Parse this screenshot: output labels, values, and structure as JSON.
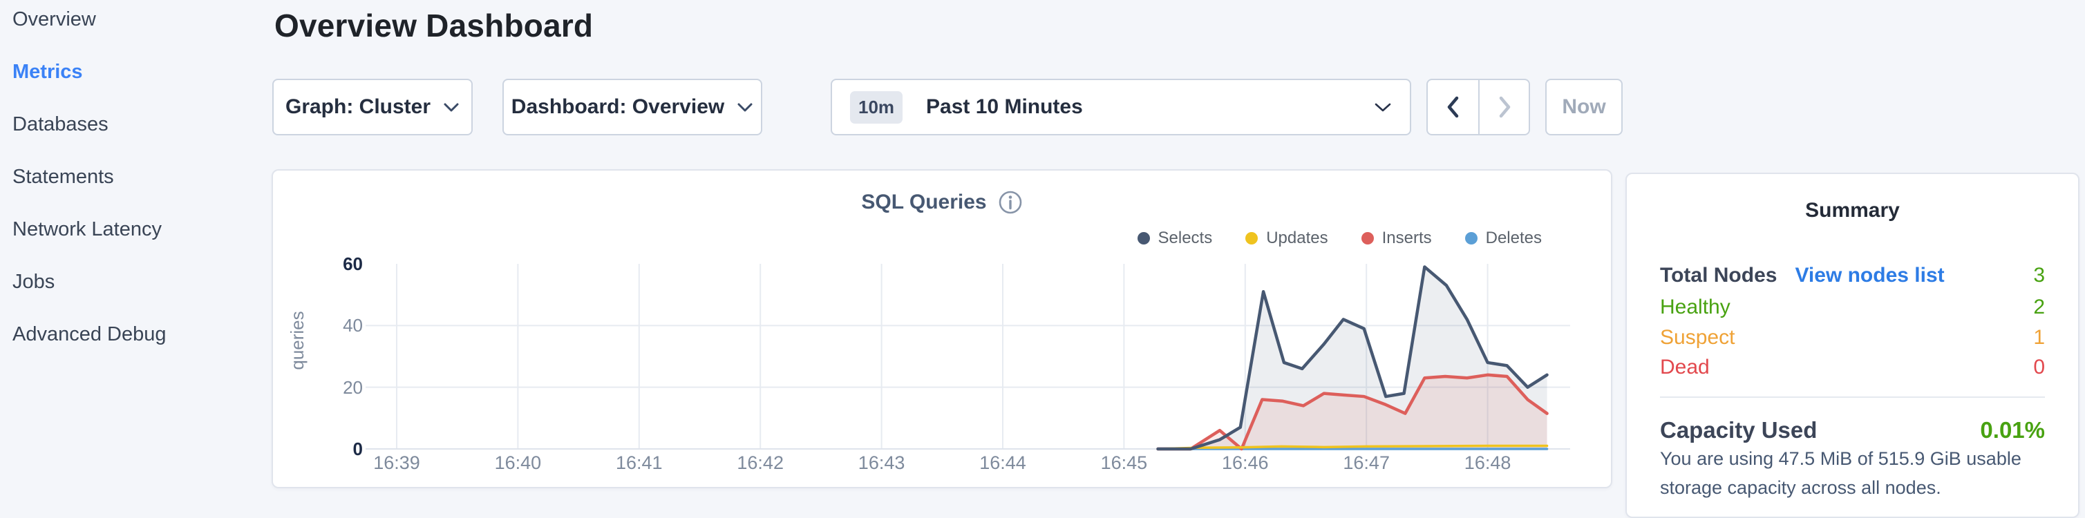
{
  "sidebar": {
    "items": [
      {
        "label": "Overview",
        "active": false
      },
      {
        "label": "Metrics",
        "active": true
      },
      {
        "label": "Databases",
        "active": false
      },
      {
        "label": "Statements",
        "active": false
      },
      {
        "label": "Network Latency",
        "active": false
      },
      {
        "label": "Jobs",
        "active": false
      },
      {
        "label": "Advanced Debug",
        "active": false
      }
    ]
  },
  "header": {
    "title": "Overview Dashboard"
  },
  "toolbar": {
    "graph_dropdown": "Graph: Cluster",
    "dashboard_dropdown": "Dashboard: Overview",
    "time_badge": "10m",
    "time_label": "Past 10 Minutes",
    "prev_icon": "chevron-left",
    "next_icon": "chevron-right",
    "next_disabled": true,
    "now_label": "Now",
    "now_disabled": true
  },
  "chart_card": {
    "title": "SQL Queries",
    "info_icon": "info-circle"
  },
  "chart_data": {
    "type": "area",
    "title": "SQL Queries",
    "ylabel": "queries",
    "xlabel": "",
    "x_ticks": [
      "16:39",
      "16:40",
      "16:41",
      "16:42",
      "16:43",
      "16:44",
      "16:45",
      "16:46",
      "16:47",
      "16:48"
    ],
    "y_ticks": [
      0,
      20,
      40,
      60
    ],
    "y_ticks_strong": [
      0,
      60
    ],
    "ylim": [
      0,
      60
    ],
    "x_values_unit": "minutes_after_16:39",
    "x_domain": [
      -0.26,
      9.7
    ],
    "grid": true,
    "legend_position": "top-right",
    "series": [
      {
        "name": "Selects",
        "color": "#475872",
        "fill": "rgba(71,88,114,0.10)",
        "points": [
          [
            6.28,
            0
          ],
          [
            6.55,
            0
          ],
          [
            6.79,
            3
          ],
          [
            6.96,
            7
          ],
          [
            7.15,
            51
          ],
          [
            7.32,
            28
          ],
          [
            7.47,
            26
          ],
          [
            7.65,
            34
          ],
          [
            7.81,
            42
          ],
          [
            7.98,
            39
          ],
          [
            8.16,
            17
          ],
          [
            8.31,
            18
          ],
          [
            8.48,
            59
          ],
          [
            8.66,
            53
          ],
          [
            8.83,
            42
          ],
          [
            9.0,
            28
          ],
          [
            9.16,
            27
          ],
          [
            9.33,
            20
          ],
          [
            9.49,
            24
          ]
        ]
      },
      {
        "name": "Updates",
        "color": "#efc31f",
        "fill": null,
        "points": [
          [
            6.28,
            0
          ],
          [
            6.6,
            0.4
          ],
          [
            6.97,
            0.5
          ],
          [
            7.3,
            0.8
          ],
          [
            7.65,
            0.6
          ],
          [
            8.0,
            0.8
          ],
          [
            8.48,
            0.9
          ],
          [
            9.0,
            1
          ],
          [
            9.49,
            1
          ]
        ]
      },
      {
        "name": "Inserts",
        "color": "#dd5f5b",
        "fill": "rgba(221,95,91,0.12)",
        "points": [
          [
            6.28,
            0
          ],
          [
            6.55,
            0
          ],
          [
            6.79,
            6
          ],
          [
            6.97,
            0
          ],
          [
            7.14,
            16
          ],
          [
            7.31,
            15.5
          ],
          [
            7.48,
            14
          ],
          [
            7.65,
            18
          ],
          [
            7.81,
            17.5
          ],
          [
            7.98,
            17
          ],
          [
            8.15,
            14.5
          ],
          [
            8.32,
            11.5
          ],
          [
            8.48,
            23
          ],
          [
            8.65,
            23.5
          ],
          [
            8.83,
            23
          ],
          [
            9.0,
            24
          ],
          [
            9.16,
            23.5
          ],
          [
            9.33,
            16
          ],
          [
            9.49,
            11.5
          ]
        ]
      },
      {
        "name": "Deletes",
        "color": "#5b9fd6",
        "fill": null,
        "points": [
          [
            6.28,
            0
          ],
          [
            9.49,
            0
          ]
        ]
      }
    ]
  },
  "summary": {
    "title": "Summary",
    "total_nodes_label": "Total Nodes",
    "view_nodes_link": "View nodes list",
    "total_nodes_value": "3",
    "rows": [
      {
        "label": "Healthy",
        "value": "2",
        "status": "healthy"
      },
      {
        "label": "Suspect",
        "value": "1",
        "status": "suspect"
      },
      {
        "label": "Dead",
        "value": "0",
        "status": "dead"
      }
    ],
    "capacity_label": "Capacity Used",
    "capacity_value": "0.01%",
    "capacity_description": "You are using 47.5 MiB of 515.9 GiB usable storage capacity across all nodes."
  },
  "colors": {
    "accent_blue": "#3b82f6",
    "link_blue": "#2d7ce5",
    "healthy_green": "#48a211",
    "suspect_orange": "#efa236",
    "dead_red": "#e2484d",
    "background": "#f4f6fa"
  }
}
